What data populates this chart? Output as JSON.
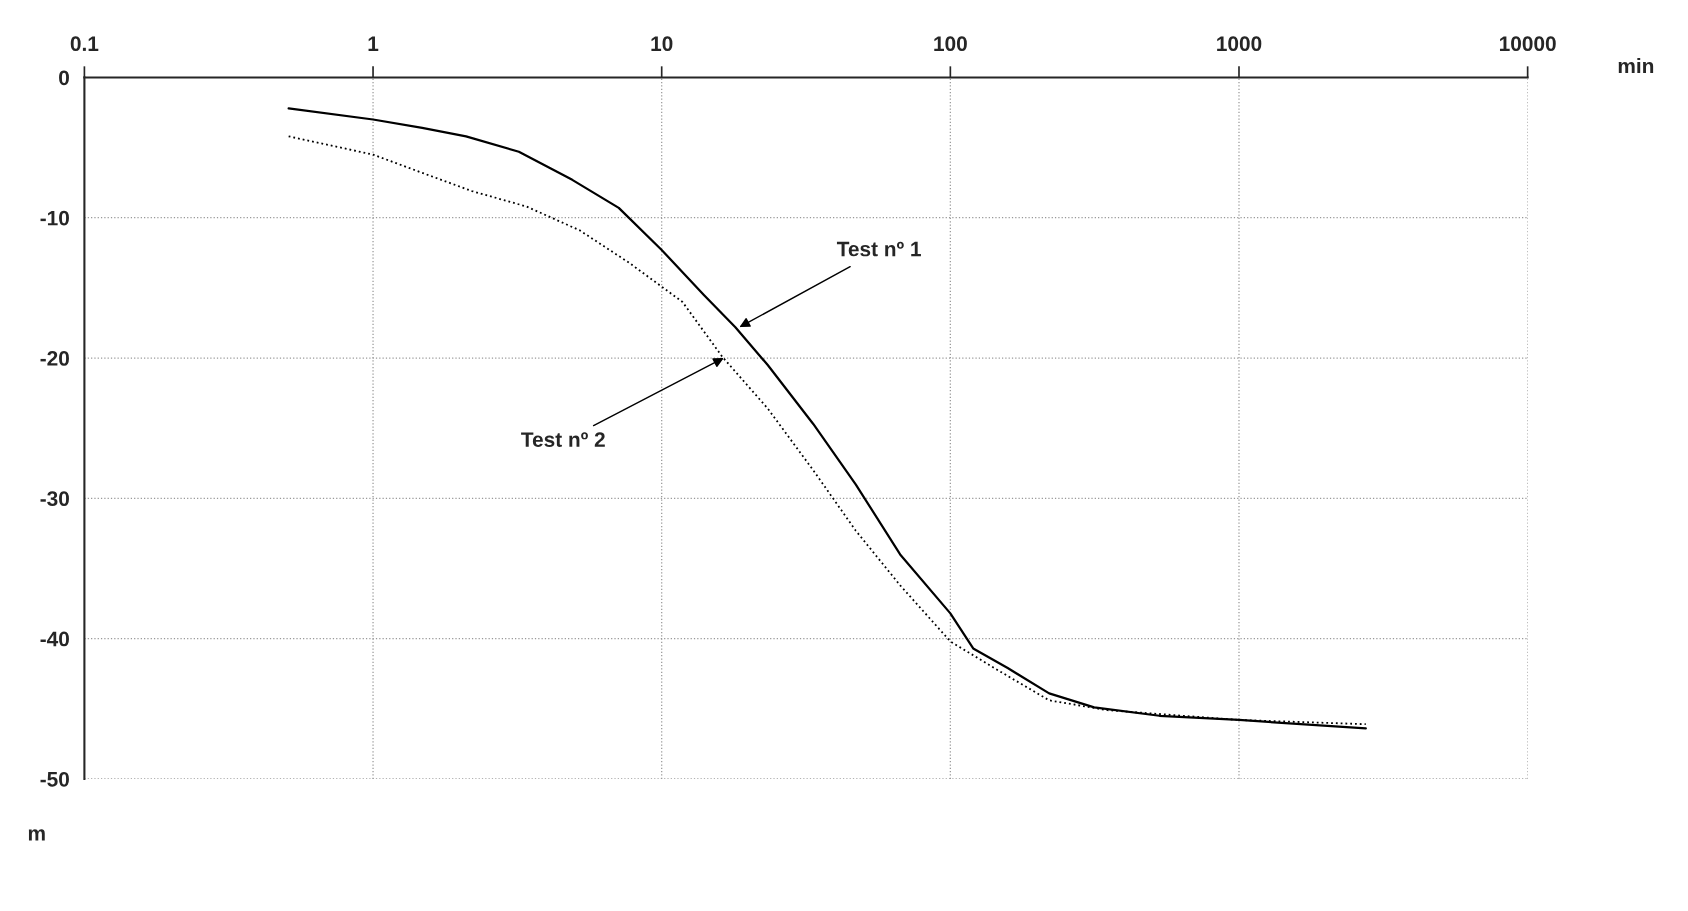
{
  "chart_data": {
    "type": "line",
    "xlabel": "min",
    "ylabel": "m",
    "log": "x",
    "xlim": [
      0.1,
      10000
    ],
    "xticks": [
      0.1,
      1,
      10,
      100,
      1000,
      10000
    ],
    "ylim": [
      -50,
      0
    ],
    "yticks": [
      0,
      -10,
      -20,
      -30,
      -40,
      -50
    ],
    "grid": true,
    "legend": false,
    "marker": "none",
    "series": [
      {
        "color": "#000000",
        "line_style": "solid",
        "x": [
          0.51,
          1,
          1.48,
          2.1,
          3.2,
          4.9,
          7.1,
          10,
          14,
          18,
          23.3,
          33.5,
          47,
          67,
          100,
          120,
          158,
          220,
          315,
          530,
          1000,
          2750
        ],
        "values": [
          -2.2,
          -3.0,
          -3.6,
          -4.2,
          -5.3,
          -7.3,
          -9.3,
          -12.3,
          -15.5,
          -17.8,
          -20.5,
          -24.7,
          -29,
          -34,
          -38.2,
          -40.7,
          -42.1,
          -43.9,
          -44.9,
          -45.5,
          -45.8,
          -46.4
        ]
      },
      {
        "color": "#000000",
        "line_style": "dotted",
        "x": [
          0.51,
          1,
          1.48,
          2.2,
          3.4,
          5.2,
          7.7,
          11.8,
          16.2,
          23.3,
          33.5,
          47,
          67,
          100,
          142,
          220,
          350,
          1000,
          2750
        ],
        "values": [
          -4.2,
          -5.5,
          -6.8,
          -8.1,
          -9.2,
          -10.9,
          -13.2,
          -16.0,
          -19.9,
          -23.6,
          -28.0,
          -32.3,
          -36.2,
          -40.2,
          -42.1,
          -44.4,
          -45.1,
          -45.8,
          -46.1
        ]
      }
    ],
    "annotations": [
      {
        "text": "Test nº 1",
        "x": 18.6,
        "y": -17.8
      },
      {
        "text": "Test nº 2",
        "x": 16.4,
        "y": -20.0
      }
    ]
  }
}
